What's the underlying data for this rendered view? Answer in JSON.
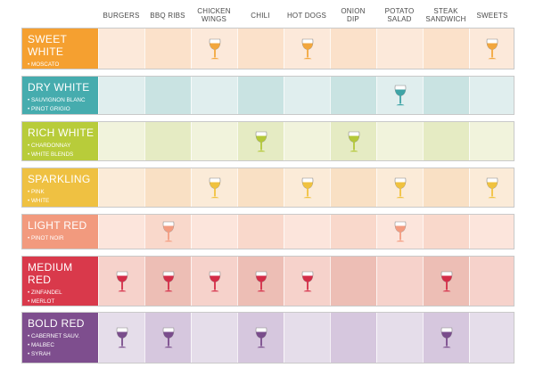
{
  "chart_data": {
    "type": "table",
    "columns": [
      "BURGERS",
      "BBQ RIBS",
      "CHICKEN WINGS",
      "CHILI",
      "HOT DOGS",
      "ONION DIP",
      "POTATO SALAD",
      "STEAK SANDWICH",
      "SWEETS"
    ],
    "rows": [
      {
        "title": "SWEET WHITE",
        "varieties": [
          "MOSCATO",
          "RIESLING"
        ],
        "label_color": "#F5A030",
        "cell_colors": [
          "#FCE9DA",
          "#FBE1CA"
        ],
        "glass_color": "#F2A73E",
        "pairings": [
          false,
          false,
          true,
          false,
          true,
          false,
          false,
          false,
          true
        ]
      },
      {
        "title": "DRY WHITE",
        "varieties": [
          "SAUVIGNON BLANC",
          "PINOT GRIGIO"
        ],
        "label_color": "#46ACAE",
        "cell_colors": [
          "#E0EEEE",
          "#C9E3E2"
        ],
        "glass_color": "#3EA4A6",
        "pairings": [
          false,
          false,
          false,
          false,
          false,
          false,
          true,
          false,
          false
        ]
      },
      {
        "title": "RICH WHITE",
        "varieties": [
          "CHARDONNAY",
          "WHITE BLENDS"
        ],
        "label_color": "#B8CC3A",
        "cell_colors": [
          "#F1F3DC",
          "#E5EBC3"
        ],
        "glass_color": "#B4C83A",
        "pairings": [
          false,
          false,
          false,
          true,
          false,
          true,
          false,
          false,
          false
        ]
      },
      {
        "title": "SPARKLING",
        "varieties": [
          "PINK",
          "WHITE"
        ],
        "label_color": "#EFC142",
        "cell_colors": [
          "#FBEBD8",
          "#F9E0C4"
        ],
        "glass_color": "#F0C23F",
        "pairings": [
          false,
          false,
          true,
          false,
          true,
          false,
          true,
          false,
          true
        ]
      },
      {
        "title": "LIGHT RED",
        "varieties": [
          "PINOT NOIR"
        ],
        "label_color": "#F29A7E",
        "cell_colors": [
          "#FCE5DC",
          "#F9D8CB"
        ],
        "glass_color": "#F39C80",
        "pairings": [
          false,
          true,
          false,
          false,
          false,
          false,
          true,
          false,
          false
        ]
      },
      {
        "title": "MEDIUM RED",
        "varieties": [
          "ZINFANDEL",
          "MERLOT",
          "RED BLEND"
        ],
        "label_color": "#D9394B",
        "cell_colors": [
          "#F6D2CB",
          "#EDBEB5"
        ],
        "glass_color": "#D42D48",
        "pairings": [
          true,
          true,
          true,
          true,
          true,
          false,
          false,
          true,
          false
        ]
      },
      {
        "title": "BOLD RED",
        "varieties": [
          "CABERNET SAUV.",
          "MALBEC",
          "SYRAH"
        ],
        "label_color": "#7E4E8E",
        "cell_colors": [
          "#E5DDEA",
          "#D6C7DE"
        ],
        "glass_color": "#7A4D8C",
        "pairings": [
          true,
          true,
          false,
          true,
          false,
          false,
          false,
          true,
          false
        ]
      }
    ]
  }
}
